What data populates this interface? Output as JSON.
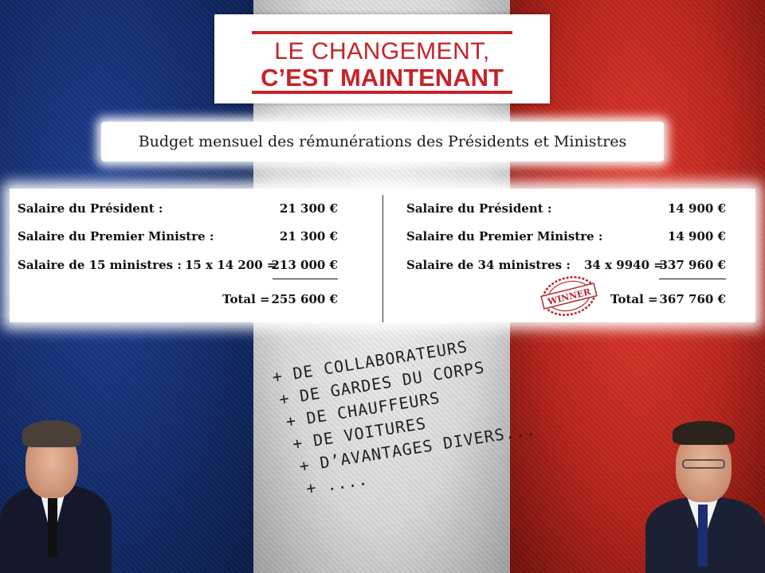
{
  "banner": {
    "line1": "LE CHANGEMENT,",
    "line2": "C’EST MAINTENANT"
  },
  "subtitle": "Budget mensuel des rémunérations des Présidents et Ministres",
  "left": {
    "president_label": "Salaire du Président :",
    "president_value": "21 300 €",
    "pm_label": "Salaire du Premier Ministre :",
    "pm_value": "21 300 €",
    "ministers_label": "Salaire de 15 ministres :",
    "ministers_calc": "15 x 14 200 =",
    "ministers_value": "213 000 €",
    "total_label": "Total =",
    "total_value": "255 600 €"
  },
  "right": {
    "president_label": "Salaire du Président :",
    "president_value": "14 900 €",
    "pm_label": "Salaire du Premier Ministre :",
    "pm_value": "14 900 €",
    "ministers_label": "Salaire de 34 ministres :",
    "ministers_calc": "34 x 9940 =",
    "ministers_value": "337 960 €",
    "total_label": "Total =",
    "total_value": "367 760 €"
  },
  "stamp": "WINNER",
  "perks": [
    "+ DE COLLABORATEURS",
    "+ DE GARDES DU CORPS",
    "+ DE CHAUFFEURS",
    "+ DE VOITURES",
    "+ D’AVANTAGES DIVERS...",
    "+ ...."
  ],
  "colors": {
    "flag_blue": "#1e3f93",
    "flag_white": "#f4f4f4",
    "flag_red": "#e2382c",
    "banner_red": "#c6232a",
    "stamp_red": "#b3272d"
  }
}
